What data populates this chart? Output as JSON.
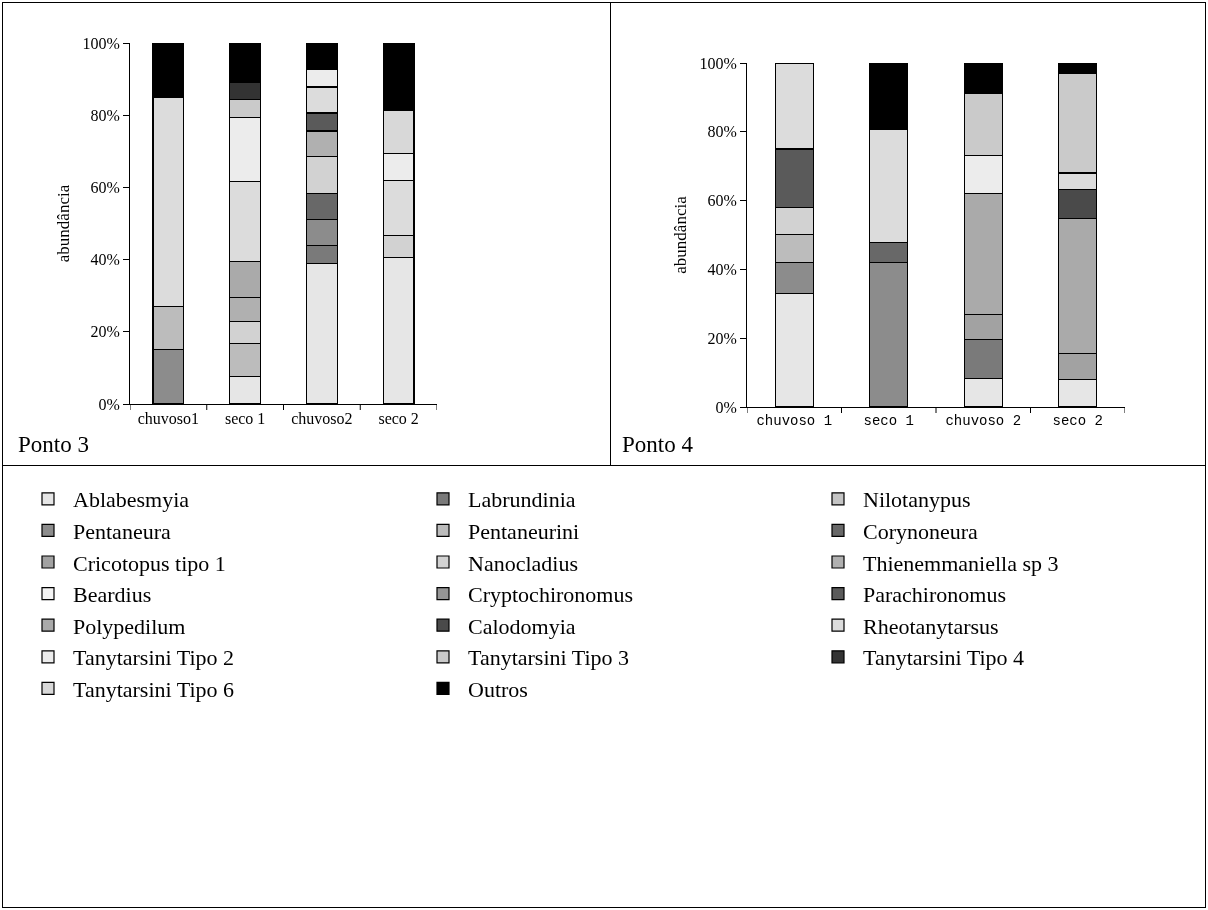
{
  "chart_data": [
    {
      "type": "bar",
      "title": "Ponto 3",
      "ylabel": "abundância",
      "stacked": true,
      "legend": "bottom",
      "grid": false,
      "categories": [
        "chuvoso1",
        "seco 1",
        "chuvoso2",
        "seco 2"
      ],
      "ylim": [
        0,
        100
      ],
      "yticks": [
        {
          "value": 0,
          "label": "0%"
        },
        {
          "value": 20,
          "label": "20%"
        },
        {
          "value": 40,
          "label": "40%"
        },
        {
          "value": 60,
          "label": "60%"
        },
        {
          "value": 80,
          "label": "80%"
        },
        {
          "value": 100,
          "label": "100%"
        }
      ],
      "series": [
        {
          "name": "Ablabesmyia",
          "color": "#e6e6e6",
          "values": [
            null,
            7.7,
            38.9,
            40.5
          ]
        },
        {
          "name": "Labrundinia",
          "color": "#7a7a7a",
          "values": [
            null,
            null,
            5.1,
            null
          ]
        },
        {
          "name": "Nilotanypus",
          "color": "#c4c4c4",
          "values": [
            null,
            null,
            null,
            null
          ]
        },
        {
          "name": "Pentaneura",
          "color": "#8c8c8c",
          "values": [
            15,
            null,
            7.1,
            null
          ]
        },
        {
          "name": "Pentaneurini",
          "color": "#bcbcbc",
          "values": [
            12,
            9,
            null,
            null
          ]
        },
        {
          "name": "Corynoneura",
          "color": "#686868",
          "values": [
            null,
            null,
            7.2,
            null
          ]
        },
        {
          "name": "Cricotopus tipo 1",
          "color": "#a2a2a2",
          "values": [
            null,
            null,
            null,
            null
          ]
        },
        {
          "name": "Nanocladius",
          "color": "#d2d2d2",
          "values": [
            null,
            6.2,
            10.2,
            6.1
          ]
        },
        {
          "name": "Thienemmaniella sp 3",
          "color": "#b0b0b0",
          "values": [
            null,
            6.5,
            7.1,
            null
          ]
        },
        {
          "name": "Beardius",
          "color": "#f4f4f4",
          "values": [
            null,
            null,
            null,
            null
          ]
        },
        {
          "name": "Cryptochironomus",
          "color": "#969696",
          "values": [
            null,
            null,
            null,
            null
          ]
        },
        {
          "name": "Parachironomus",
          "color": "#5a5a5a",
          "values": [
            null,
            null,
            5,
            null
          ]
        },
        {
          "name": "Polypedilum",
          "color": "#aaaaaa",
          "values": [
            null,
            10,
            null,
            null
          ]
        },
        {
          "name": "Calodomyia",
          "color": "#4a4a4a",
          "values": [
            null,
            null,
            null,
            null
          ]
        },
        {
          "name": "Rheotanytarsus",
          "color": "#dcdcdc",
          "values": [
            58,
            22.2,
            7.2,
            15.4
          ]
        },
        {
          "name": "Tanytarsini Tipo 2",
          "color": "#ececec",
          "values": [
            null,
            17.8,
            4.8,
            7.4
          ]
        },
        {
          "name": "Tanytarsini Tipo 3",
          "color": "#cacaca",
          "values": [
            null,
            4.9,
            null,
            null
          ]
        },
        {
          "name": "Tanytarsini Tipo 4",
          "color": "#333333",
          "values": [
            null,
            4.9,
            null,
            null
          ]
        },
        {
          "name": "Tanytarsini Tipo 6",
          "color": "#d8d8d8",
          "values": [
            null,
            null,
            null,
            11.8
          ]
        },
        {
          "name": "Outros",
          "color": "#000000",
          "values": [
            15,
            10.8,
            7.4,
            18.8
          ]
        }
      ]
    },
    {
      "type": "bar",
      "title": "Ponto 4",
      "ylabel": "abundância",
      "stacked": true,
      "legend": false,
      "grid": false,
      "categories": [
        "chuvoso 1",
        "seco 1",
        "chuvoso 2",
        "seco 2"
      ],
      "ylim": [
        0,
        100
      ],
      "yticks": [
        {
          "value": 0,
          "label": "0%"
        },
        {
          "value": 20,
          "label": "20%"
        },
        {
          "value": 40,
          "label": "40%"
        },
        {
          "value": 60,
          "label": "60%"
        },
        {
          "value": 80,
          "label": "80%"
        },
        {
          "value": 100,
          "label": "100%"
        }
      ],
      "series": [
        {
          "color": "#e6e6e6",
          "values": [
            32.9,
            null,
            8.4,
            7.9
          ]
        },
        {
          "color": "#7a7a7a",
          "values": [
            null,
            null,
            11.2,
            null
          ]
        },
        {
          "color": "#c4c4c4",
          "values": [
            null,
            null,
            null,
            null
          ]
        },
        {
          "color": "#8c8c8c",
          "values": [
            9,
            42,
            null,
            null
          ]
        },
        {
          "color": "#bcbcbc",
          "values": [
            8.2,
            null,
            null,
            null
          ]
        },
        {
          "color": "#686868",
          "values": [
            null,
            5.9,
            null,
            null
          ]
        },
        {
          "color": "#a2a2a2",
          "values": [
            null,
            null,
            7.2,
            7.6
          ]
        },
        {
          "color": "#d2d2d2",
          "values": [
            8,
            null,
            null,
            null
          ]
        },
        {
          "color": "#b0b0b0",
          "values": [
            null,
            null,
            null,
            null
          ]
        },
        {
          "color": "#f4f4f4",
          "values": [
            null,
            null,
            null,
            null
          ]
        },
        {
          "color": "#969696",
          "values": [
            null,
            null,
            null,
            null
          ]
        },
        {
          "color": "#5a5a5a",
          "values": [
            16.9,
            null,
            null,
            null
          ]
        },
        {
          "color": "#aaaaaa",
          "values": [
            null,
            null,
            35.2,
            39.4
          ]
        },
        {
          "color": "#4a4a4a",
          "values": [
            null,
            null,
            null,
            8.3
          ]
        },
        {
          "color": "#dcdcdc",
          "values": [
            25,
            32.7,
            null,
            4.8
          ]
        },
        {
          "color": "#ececec",
          "values": [
            null,
            null,
            11.1,
            null
          ]
        },
        {
          "color": "#cacaca",
          "values": [
            null,
            null,
            18,
            28.9
          ]
        },
        {
          "color": "#333333",
          "values": [
            null,
            null,
            null,
            null
          ]
        },
        {
          "color": "#d8d8d8",
          "values": [
            null,
            null,
            null,
            null
          ]
        },
        {
          "color": "#000000",
          "values": [
            null,
            19.4,
            8.9,
            3.1
          ]
        }
      ]
    }
  ]
}
